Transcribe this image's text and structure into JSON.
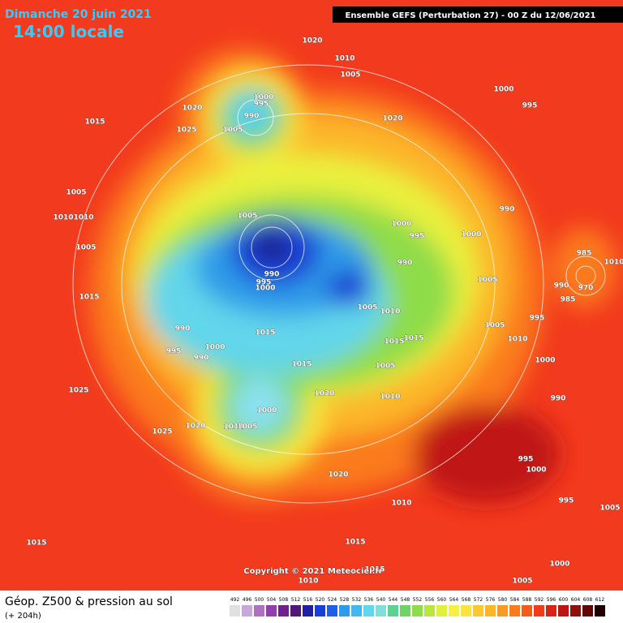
{
  "header": {
    "date": "Dimanche 20 juin 2021",
    "time": "14:00 locale",
    "model": "Ensemble GEFS  (Perturbation 27)  -  00 Z du 12/06/2021"
  },
  "isobar_labels": [
    "1020",
    "1010",
    "1005",
    "1000",
    "995",
    "990",
    "1005",
    "1020",
    "1025",
    "1015",
    "1020",
    "1000",
    "995",
    "1005",
    "1010",
    "1010",
    "1005",
    "1005",
    "1000",
    "995",
    "1000",
    "990",
    "990",
    "990",
    "995",
    "1000",
    "1015",
    "1005",
    "1010",
    "990",
    "1015",
    "1015",
    "1015",
    "995",
    "1000",
    "990",
    "1015",
    "1005",
    "995",
    "1010",
    "1005",
    "1000",
    "1005",
    "985",
    "990",
    "970",
    "985",
    "1010",
    "1025",
    "1020",
    "1010",
    "990",
    "1000",
    "1020",
    "1025",
    "1010",
    "1005",
    "995",
    "1000",
    "1020",
    "1010",
    "995",
    "1005",
    "1015",
    "1015",
    "1015",
    "1000",
    "1010",
    "1005"
  ],
  "footer": {
    "copyright": "Copyright © 2021 Meteociel.fr",
    "legend_title": "Géop. Z500 & pression au sol",
    "lead_time": "(+ 204h)"
  },
  "legend_scale": [
    492,
    496,
    500,
    504,
    508,
    512,
    516,
    520,
    524,
    528,
    532,
    536,
    540,
    544,
    548,
    552,
    556,
    560,
    564,
    568,
    572,
    576,
    580,
    584,
    588,
    592,
    596,
    600,
    604,
    608,
    612
  ]
}
